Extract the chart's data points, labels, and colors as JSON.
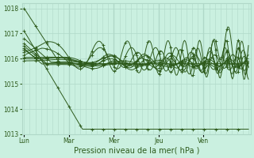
{
  "xlabel": "Pression niveau de la mer( hPa )",
  "bg_color": "#caf0e0",
  "grid_color_v": "#b0d8c8",
  "grid_color_h": "#b0d8c8",
  "line_color": "#2d5a1b",
  "ylim": [
    1013.0,
    1018.2
  ],
  "yticks": [
    1013,
    1014,
    1015,
    1016,
    1017,
    1018
  ],
  "day_labels": [
    "Lun",
    "Mar",
    "Mer",
    "Jeu",
    "Ven"
  ],
  "xlabel_fontsize": 7.0,
  "tick_fontsize": 5.5
}
